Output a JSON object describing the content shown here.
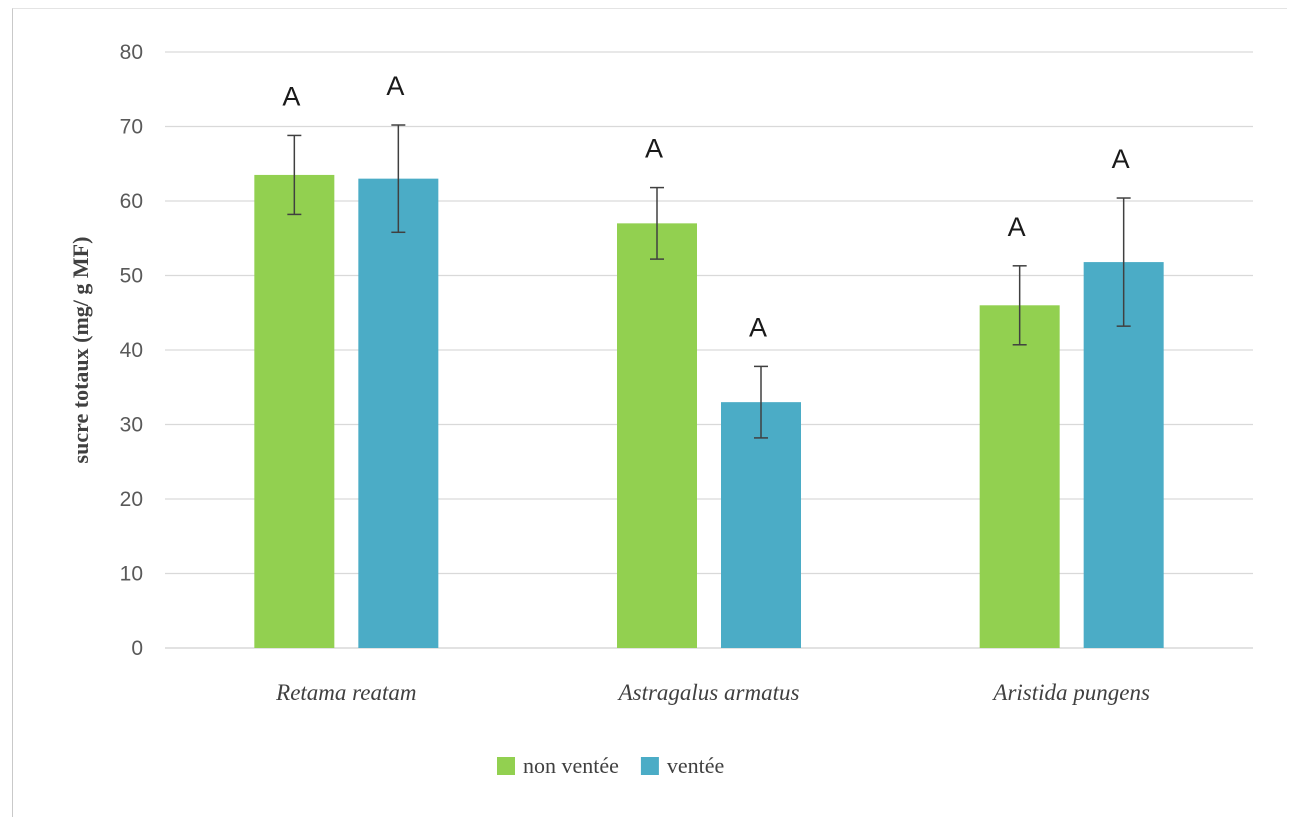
{
  "chart_data": {
    "type": "bar",
    "title": "",
    "xlabel": "",
    "ylabel": "sucre totaux (mg/ g MF)",
    "ylim": [
      0,
      80
    ],
    "yticks": [
      0,
      10,
      20,
      30,
      40,
      50,
      60,
      70,
      80
    ],
    "grid": true,
    "legend_position": "bottom",
    "categories": [
      "Retama reatam",
      "Astragalus armatus",
      "Aristida pungens"
    ],
    "series": [
      {
        "name": "non ventée",
        "color": "#92d050",
        "values": [
          63.5,
          57.0,
          46.0
        ],
        "error": [
          5.3,
          4.8,
          5.3
        ],
        "labels": [
          "A",
          "A",
          "A"
        ]
      },
      {
        "name": "ventée",
        "color": "#4bacc6",
        "values": [
          63.0,
          33.0,
          51.8
        ],
        "error": [
          7.2,
          4.8,
          8.6
        ],
        "labels": [
          "A",
          "A",
          "A"
        ]
      }
    ],
    "colors": {
      "grid": "#d9d9d9",
      "error_bar": "#404040"
    }
  }
}
